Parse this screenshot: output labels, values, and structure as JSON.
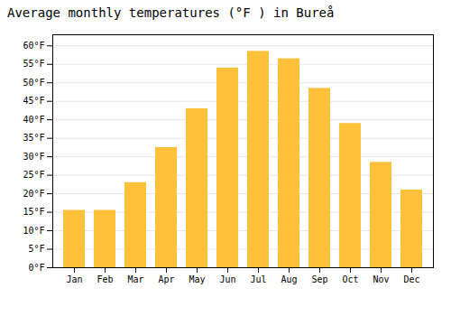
{
  "chart_data": {
    "type": "bar",
    "title": "Average monthly temperatures (°F ) in Bureå",
    "categories": [
      "Jan",
      "Feb",
      "Mar",
      "Apr",
      "May",
      "Jun",
      "Jul",
      "Aug",
      "Sep",
      "Oct",
      "Nov",
      "Dec"
    ],
    "values": [
      15.5,
      15.5,
      23.0,
      32.5,
      43.0,
      54.0,
      58.5,
      56.5,
      48.5,
      39.0,
      28.5,
      21.0
    ],
    "color": "#FFC03A",
    "ylim": [
      0,
      63
    ],
    "yticks": [
      {
        "value": 0,
        "label": "0°F"
      },
      {
        "value": 5,
        "label": "5°F"
      },
      {
        "value": 10,
        "label": "10°F"
      },
      {
        "value": 15,
        "label": "15°F"
      },
      {
        "value": 20,
        "label": "20°F"
      },
      {
        "value": 25,
        "label": "25°F"
      },
      {
        "value": 30,
        "label": "30°F"
      },
      {
        "value": 35,
        "label": "35°F"
      },
      {
        "value": 40,
        "label": "40°F"
      },
      {
        "value": 45,
        "label": "45°F"
      },
      {
        "value": 50,
        "label": "50°F"
      },
      {
        "value": 55,
        "label": "55°F"
      },
      {
        "value": 60,
        "label": "60°F"
      }
    ],
    "grid": true
  }
}
